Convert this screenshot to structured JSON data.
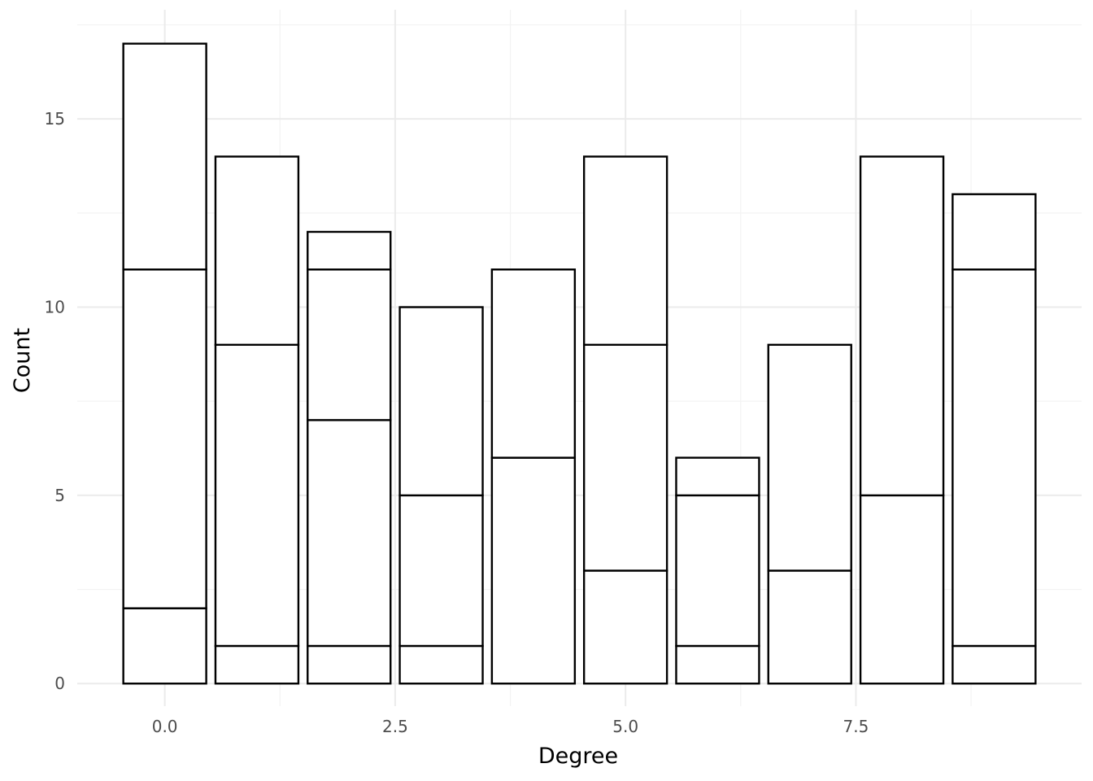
{
  "chart_data": {
    "type": "bar",
    "stacked": true,
    "title": "",
    "xlabel": "Degree",
    "ylabel": "Count",
    "x": [
      0,
      1,
      2,
      3,
      4,
      5,
      6,
      7,
      8,
      9
    ],
    "segment_boundaries": [
      [
        0,
        2,
        11,
        17
      ],
      [
        0,
        1,
        9,
        14
      ],
      [
        0,
        1,
        7,
        11,
        12
      ],
      [
        0,
        1,
        5,
        10
      ],
      [
        0,
        6,
        11
      ],
      [
        0,
        3,
        9,
        14
      ],
      [
        0,
        1,
        5,
        6
      ],
      [
        0,
        3,
        9
      ],
      [
        0,
        5,
        14
      ],
      [
        0,
        1,
        11,
        13
      ]
    ],
    "totals": [
      17,
      14,
      12,
      10,
      11,
      14,
      6,
      9,
      14,
      13
    ],
    "xlim": [
      -0.95,
      9.95
    ],
    "ylim": [
      -0.6,
      17.9
    ],
    "x_ticks": [
      0,
      2.5,
      5,
      7.5
    ],
    "x_tick_labels": [
      "0.0",
      "2.5",
      "5.0",
      "7.5"
    ],
    "y_ticks": [
      0,
      5,
      10,
      15
    ],
    "y_tick_labels": [
      "0",
      "5",
      "10",
      "15"
    ],
    "bar_width": 0.9,
    "grid": true,
    "bar_fill": "#ffffff",
    "bar_stroke": "#000000",
    "grid_color": "#ebebeb"
  }
}
